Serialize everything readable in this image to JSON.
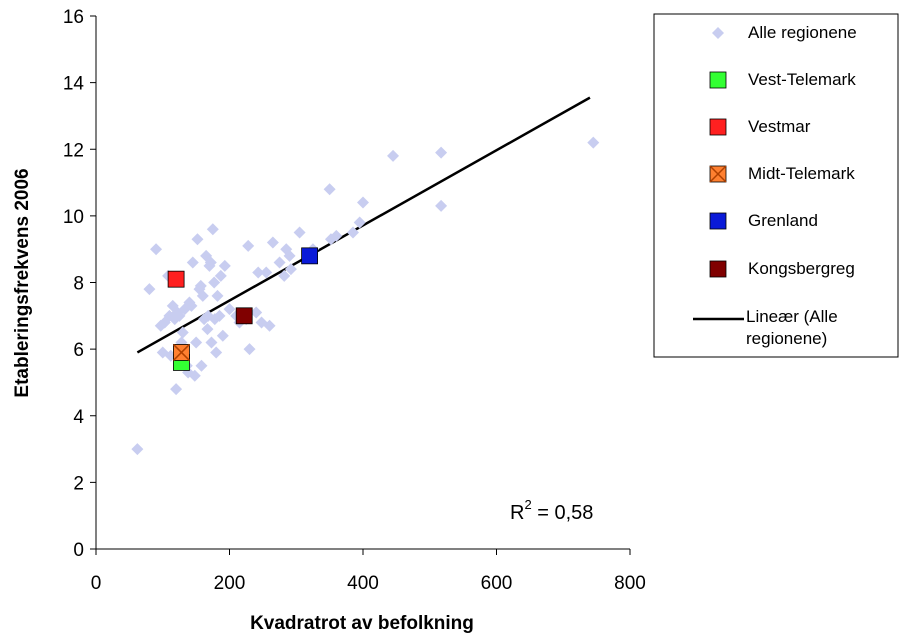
{
  "chart_data": {
    "type": "scatter",
    "xlabel": "Kvadratrot av befolkning",
    "ylabel": "Etableringsfrekvens 2006",
    "xlim": [
      0,
      800
    ],
    "ylim": [
      0,
      16
    ],
    "x_ticks": [
      0,
      200,
      400,
      600,
      800
    ],
    "y_ticks": [
      0,
      2,
      4,
      6,
      8,
      10,
      12,
      14,
      16
    ],
    "grid": false,
    "legend_position": "right",
    "annotation": {
      "prefix": "R",
      "superscript": "2",
      "suffix": " = 0,58"
    },
    "series": [
      {
        "name": "Alle regionene",
        "marker": "diamond",
        "color": "#c8cdf0",
        "points": [
          [
            62,
            3.0
          ],
          [
            80,
            7.8
          ],
          [
            90,
            9.0
          ],
          [
            97,
            6.7
          ],
          [
            100,
            5.9
          ],
          [
            103,
            6.8
          ],
          [
            108,
            8.2
          ],
          [
            110,
            7.0
          ],
          [
            112,
            5.8
          ],
          [
            115,
            7.3
          ],
          [
            118,
            6.9
          ],
          [
            120,
            4.8
          ],
          [
            122,
            7.1
          ],
          [
            125,
            7.0
          ],
          [
            128,
            6.2
          ],
          [
            130,
            6.5
          ],
          [
            133,
            7.2
          ],
          [
            136,
            5.5
          ],
          [
            138,
            5.3
          ],
          [
            140,
            7.4
          ],
          [
            143,
            7.3
          ],
          [
            145,
            8.6
          ],
          [
            148,
            5.2
          ],
          [
            150,
            6.2
          ],
          [
            152,
            9.3
          ],
          [
            155,
            7.8
          ],
          [
            157,
            7.9
          ],
          [
            158,
            5.5
          ],
          [
            160,
            7.6
          ],
          [
            162,
            6.9
          ],
          [
            165,
            8.8
          ],
          [
            167,
            6.6
          ],
          [
            168,
            7.0
          ],
          [
            170,
            8.5
          ],
          [
            172,
            8.6
          ],
          [
            173,
            6.2
          ],
          [
            175,
            9.6
          ],
          [
            177,
            8.0
          ],
          [
            178,
            6.9
          ],
          [
            180,
            5.9
          ],
          [
            182,
            7.6
          ],
          [
            185,
            7.0
          ],
          [
            187,
            8.2
          ],
          [
            190,
            6.4
          ],
          [
            193,
            8.5
          ],
          [
            200,
            7.2
          ],
          [
            210,
            7.0
          ],
          [
            215,
            6.8
          ],
          [
            225,
            6.9
          ],
          [
            228,
            9.1
          ],
          [
            230,
            6.0
          ],
          [
            240,
            7.1
          ],
          [
            243,
            8.3
          ],
          [
            248,
            6.8
          ],
          [
            255,
            8.3
          ],
          [
            260,
            6.7
          ],
          [
            265,
            9.2
          ],
          [
            275,
            8.6
          ],
          [
            282,
            8.2
          ],
          [
            285,
            9.0
          ],
          [
            290,
            8.8
          ],
          [
            292,
            8.4
          ],
          [
            305,
            9.5
          ],
          [
            325,
            9.0
          ],
          [
            350,
            10.8
          ],
          [
            352,
            9.3
          ],
          [
            360,
            9.4
          ],
          [
            385,
            9.5
          ],
          [
            395,
            9.8
          ],
          [
            400,
            10.4
          ],
          [
            445,
            11.8
          ],
          [
            517,
            11.9
          ],
          [
            517,
            10.3
          ],
          [
            745,
            12.2
          ]
        ]
      },
      {
        "name": "Vest-Telemark",
        "marker": "square",
        "color": "#33ff33",
        "points": [
          [
            128,
            5.6
          ]
        ]
      },
      {
        "name": "Vestmar",
        "marker": "square",
        "color": "#ff2020",
        "points": [
          [
            120,
            8.1
          ]
        ]
      },
      {
        "name": "Midt-Telemark",
        "marker": "square-x",
        "color": "#ff8030",
        "points": [
          [
            128,
            5.9
          ]
        ]
      },
      {
        "name": "Grenland",
        "marker": "square",
        "color": "#0a1ad8",
        "points": [
          [
            320,
            8.8
          ]
        ]
      },
      {
        "name": "Kongsbergreg",
        "marker": "square",
        "color": "#800000",
        "points": [
          [
            222,
            7.0
          ]
        ]
      }
    ],
    "trendline": {
      "name": "Lineær (Alle regionene)",
      "name_lines": [
        "Lineær (Alle",
        "regionene)"
      ],
      "color": "#000000",
      "x": [
        62,
        740
      ],
      "y": [
        5.9,
        13.55
      ]
    }
  }
}
